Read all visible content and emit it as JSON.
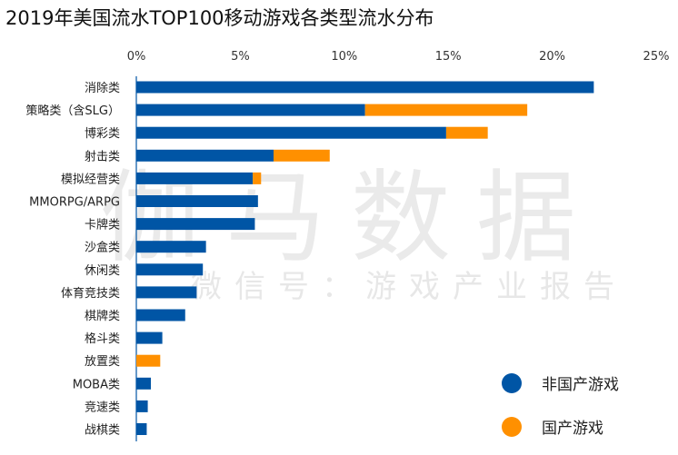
{
  "chart_data": {
    "type": "bar",
    "orientation": "horizontal",
    "stacked": true,
    "title": "2019年美国流水TOP100移动游戏各类型流水分布",
    "categories": [
      "消除类",
      "策略类（含SLG）",
      "博彩类",
      "射击类",
      "模拟经营类",
      "MMORPG/ARPG",
      "卡牌类",
      "沙盒类",
      "休闲类",
      "体育竞技类",
      "棋牌类",
      "格斗类",
      "放置类",
      "MOBA类",
      "竞速类",
      "战棋类"
    ],
    "series": [
      {
        "name": "非国产游戏",
        "color": "#0055A5",
        "values": [
          22.0,
          11.0,
          14.9,
          6.6,
          5.6,
          5.85,
          5.7,
          3.35,
          3.2,
          2.9,
          2.35,
          1.25,
          0,
          0.7,
          0.55,
          0.5
        ]
      },
      {
        "name": "国产游戏",
        "color": "#FF9000",
        "values": [
          0,
          7.8,
          2.0,
          2.7,
          0.4,
          0,
          0,
          0,
          0,
          0,
          0,
          0,
          1.15,
          0,
          0,
          0
        ]
      }
    ],
    "xlim": [
      0,
      25
    ],
    "xticks": [
      "0%",
      "5%",
      "10%",
      "15%",
      "20%",
      "25%"
    ],
    "xtick_values": [
      0,
      5,
      10,
      15,
      20,
      25
    ],
    "axis_position": "top",
    "grid": false,
    "legend_placement": "bottom-right"
  },
  "watermark": {
    "brand": "伽马数据",
    "subtitle": "微信号：游戏产业报告"
  }
}
